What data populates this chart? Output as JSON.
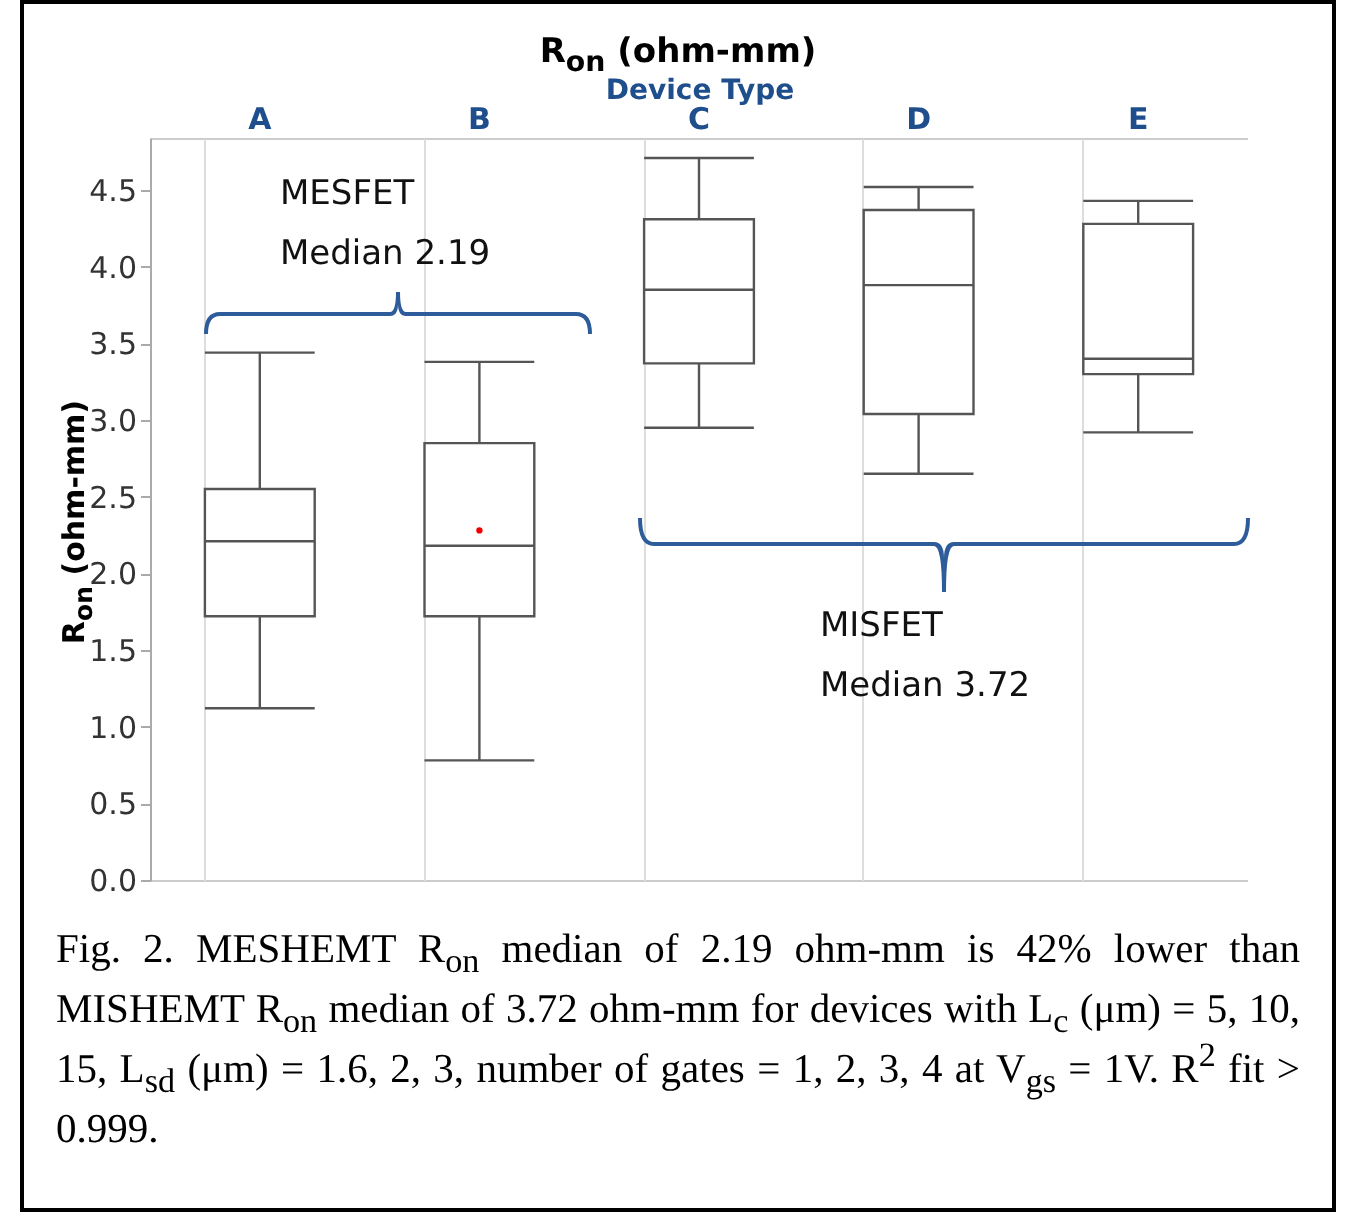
{
  "chart_data": {
    "type": "box",
    "title": "R$_{on}$ (ohm-mm)",
    "xlabel": "Device Type",
    "ylabel": "R$_{on}$ (ohm-mm)",
    "categories": [
      "A",
      "B",
      "C",
      "D",
      "E"
    ],
    "boxes": [
      {
        "low": 1.12,
        "q1": 1.72,
        "median": 2.21,
        "q3": 2.55,
        "high": 3.44
      },
      {
        "low": 0.78,
        "q1": 1.72,
        "median": 2.18,
        "q3": 2.85,
        "high": 3.38,
        "mean": 2.28
      },
      {
        "low": 2.95,
        "q1": 3.37,
        "median": 3.85,
        "q3": 4.31,
        "high": 4.71
      },
      {
        "low": 2.65,
        "q1": 3.04,
        "median": 3.88,
        "q3": 4.37,
        "high": 4.52
      },
      {
        "low": 2.92,
        "q1": 3.3,
        "median": 3.4,
        "q3": 4.28,
        "high": 4.43
      }
    ],
    "ylim": [
      0,
      4.84
    ],
    "yticks": [
      {
        "value": 0,
        "label": "0.0"
      },
      0.5,
      {
        "value": 1,
        "label": "1.0"
      },
      1.5,
      {
        "value": 2,
        "label": "2.0"
      },
      2.5,
      {
        "value": 3,
        "label": "3.0"
      },
      3.5,
      {
        "value": 4,
        "label": "4.0"
      },
      4.5
    ],
    "grid": "x",
    "annotations": [
      "MESFET\nMedian 2.19",
      "MISFET\nMedian 3.72",
      "Fig. 2. MESHEMT R$_{on}$ median of 2.19 ohm-mm is 42% lower than MISHEMT R$_{on}$ median of 3.72 ohm-mm for devices with L$_{c}$ (μm) = 5, 10, 15, L$_{sd}$ (μm) = 1.6, 2, 3, number of gates = 1, 2, 3, 4 at V$_{gs}$ = 1V.  R$^{2}$ fit > 0.999."
    ]
  }
}
